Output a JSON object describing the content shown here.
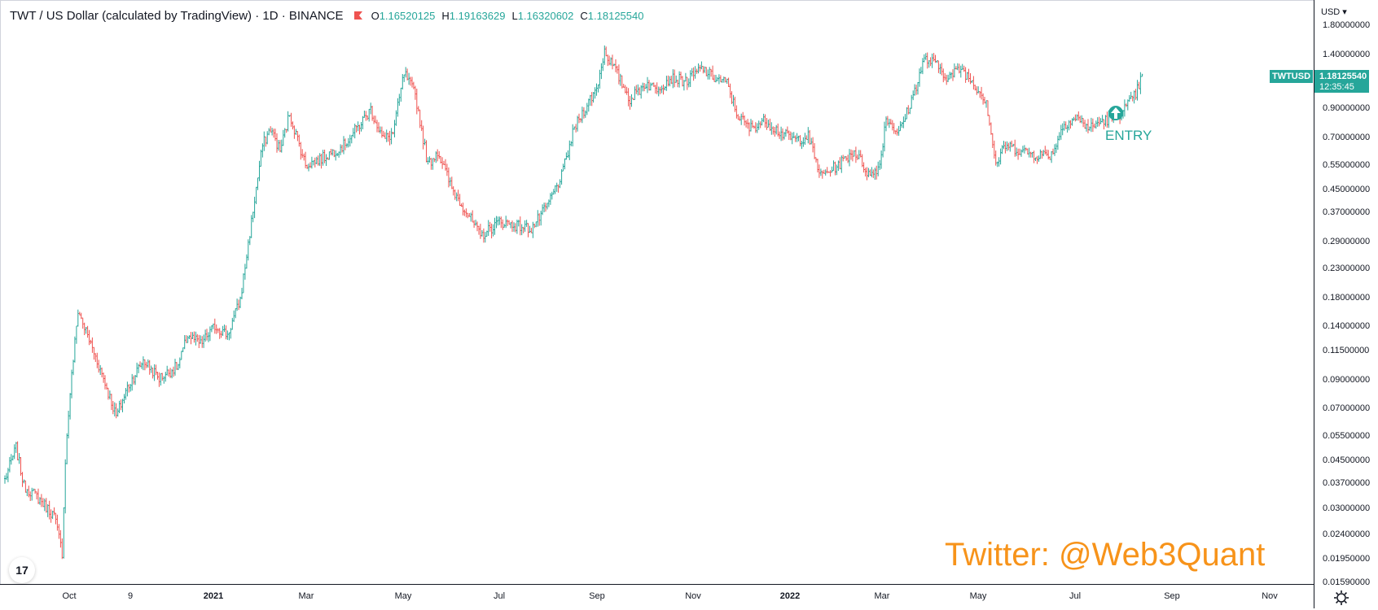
{
  "header": {
    "title": "TWT / US Dollar (calculated by TradingView) · 1D · BINANCE",
    "ohlc": [
      {
        "k": "O",
        "v": "1.16520125"
      },
      {
        "k": "H",
        "v": "1.19163629"
      },
      {
        "k": "L",
        "v": "1.16320602"
      },
      {
        "k": "C",
        "v": "1.18125540"
      }
    ]
  },
  "price_axis": {
    "currency": "USD",
    "labels": [
      "1.80000000",
      "1.40000000",
      "1.18125540",
      "0.90000000",
      "0.70000000",
      "0.55000000",
      "0.45000000",
      "0.37000000",
      "0.29000000",
      "0.23000000",
      "0.18000000",
      "0.14000000",
      "0.11500000",
      "0.09000000",
      "0.07000000",
      "0.05500000",
      "0.04500000",
      "0.03700000",
      "0.03000000",
      "0.02400000",
      "0.01950000",
      "0.01590000"
    ]
  },
  "time_axis": {
    "labels": [
      "Oct",
      "9",
      "2021",
      "Mar",
      "May",
      "Jul",
      "Sep",
      "Nov",
      "2022",
      "Mar",
      "May",
      "Jul",
      "Sep",
      "Nov"
    ]
  },
  "last_price": {
    "symbol": "TWTUSD",
    "price": "1.18125540",
    "countdown": "12:35:45"
  },
  "annotation": {
    "text": "ENTRY"
  },
  "watermark": "Twitter: @Web3Quant",
  "logo": "17",
  "colors": {
    "up": "#26a69a",
    "down": "#ef5350",
    "watermark": "#f7931a",
    "flag": "#ef5350"
  },
  "chart_data": {
    "type": "ohlc",
    "title": "TWT / US Dollar (calculated by TradingView)",
    "interval": "1D",
    "exchange": "BINANCE",
    "scale": "log",
    "ylim": [
      0.0155,
      1.9
    ],
    "x_ticks": [
      "Oct",
      "9",
      "2021",
      "Mar",
      "May",
      "Jul",
      "Sep",
      "Nov",
      "2022",
      "Mar",
      "May",
      "Jul",
      "Sep",
      "Nov"
    ],
    "y_ticks": [
      1.8,
      1.4,
      0.9,
      0.7,
      0.55,
      0.45,
      0.37,
      0.29,
      0.23,
      0.18,
      0.14,
      0.115,
      0.09,
      0.07,
      0.055,
      0.045,
      0.037,
      0.03,
      0.024,
      0.0195,
      0.0159
    ],
    "grid": false,
    "last": {
      "open": 1.16520125,
      "high": 1.19163629,
      "low": 1.16320602,
      "close": 1.1812554
    },
    "anchors": [
      [
        "2020-08-27",
        0.038
      ],
      [
        "2020-09-03",
        0.05
      ],
      [
        "2020-09-08",
        0.036
      ],
      [
        "2020-09-16",
        0.033
      ],
      [
        "2020-09-27",
        0.028
      ],
      [
        "2020-10-02",
        0.0205
      ],
      [
        "2020-10-04",
        0.045
      ],
      [
        "2020-10-07",
        0.08
      ],
      [
        "2020-10-12",
        0.16
      ],
      [
        "2020-10-20",
        0.12
      ],
      [
        "2020-10-28",
        0.09
      ],
      [
        "2020-11-05",
        0.065
      ],
      [
        "2020-11-12",
        0.083
      ],
      [
        "2020-11-22",
        0.105
      ],
      [
        "2020-12-02",
        0.09
      ],
      [
        "2020-12-14",
        0.1
      ],
      [
        "2020-12-20",
        0.13
      ],
      [
        "2020-12-28",
        0.12
      ],
      [
        "2021-01-06",
        0.14
      ],
      [
        "2021-01-14",
        0.13
      ],
      [
        "2021-01-22",
        0.175
      ],
      [
        "2021-02-01",
        0.45
      ],
      [
        "2021-02-05",
        0.65
      ],
      [
        "2021-02-10",
        0.75
      ],
      [
        "2021-02-16",
        0.62
      ],
      [
        "2021-02-22",
        0.85
      ],
      [
        "2021-03-04",
        0.55
      ],
      [
        "2021-03-14",
        0.58
      ],
      [
        "2021-03-28",
        0.65
      ],
      [
        "2021-04-06",
        0.76
      ],
      [
        "2021-04-14",
        0.88
      ],
      [
        "2021-04-22",
        0.68
      ],
      [
        "2021-04-28",
        0.72
      ],
      [
        "2021-05-05",
        1.2
      ],
      [
        "2021-05-12",
        1.0
      ],
      [
        "2021-05-20",
        0.55
      ],
      [
        "2021-05-26",
        0.62
      ],
      [
        "2021-06-04",
        0.45
      ],
      [
        "2021-06-12",
        0.38
      ],
      [
        "2021-06-22",
        0.3
      ],
      [
        "2021-07-04",
        0.34
      ],
      [
        "2021-07-14",
        0.33
      ],
      [
        "2021-07-24",
        0.32
      ],
      [
        "2021-08-02",
        0.38
      ],
      [
        "2021-08-12",
        0.5
      ],
      [
        "2021-08-20",
        0.75
      ],
      [
        "2021-08-28",
        0.92
      ],
      [
        "2021-09-03",
        1.05
      ],
      [
        "2021-09-08",
        1.45
      ],
      [
        "2021-09-14",
        1.25
      ],
      [
        "2021-09-24",
        0.96
      ],
      [
        "2021-10-04",
        1.1
      ],
      [
        "2021-10-10",
        1.05
      ],
      [
        "2021-10-20",
        1.15
      ],
      [
        "2021-10-30",
        1.12
      ],
      [
        "2021-11-08",
        1.25
      ],
      [
        "2021-11-16",
        1.15
      ],
      [
        "2021-11-24",
        1.1
      ],
      [
        "2021-11-30",
        0.85
      ],
      [
        "2021-12-08",
        0.75
      ],
      [
        "2021-12-18",
        0.8
      ],
      [
        "2021-12-28",
        0.72
      ],
      [
        "2022-01-06",
        0.68
      ],
      [
        "2022-01-14",
        0.7
      ],
      [
        "2022-01-22",
        0.5
      ],
      [
        "2022-02-02",
        0.55
      ],
      [
        "2022-02-12",
        0.62
      ],
      [
        "2022-02-22",
        0.5
      ],
      [
        "2022-02-28",
        0.55
      ],
      [
        "2022-03-04",
        0.82
      ],
      [
        "2022-03-12",
        0.72
      ],
      [
        "2022-03-20",
        0.95
      ],
      [
        "2022-03-28",
        1.35
      ],
      [
        "2022-04-04",
        1.3
      ],
      [
        "2022-04-12",
        1.15
      ],
      [
        "2022-04-20",
        1.25
      ],
      [
        "2022-04-28",
        1.1
      ],
      [
        "2022-05-06",
        0.95
      ],
      [
        "2022-05-12",
        0.55
      ],
      [
        "2022-05-18",
        0.65
      ],
      [
        "2022-05-28",
        0.62
      ],
      [
        "2022-06-06",
        0.6
      ],
      [
        "2022-06-16",
        0.6
      ],
      [
        "2022-06-24",
        0.78
      ],
      [
        "2022-07-02",
        0.82
      ],
      [
        "2022-07-10",
        0.75
      ],
      [
        "2022-07-18",
        0.8
      ],
      [
        "2022-07-26",
        0.82
      ],
      [
        "2022-08-02",
        0.9
      ],
      [
        "2022-08-08",
        1.0
      ],
      [
        "2022-08-12",
        1.18
      ]
    ]
  }
}
